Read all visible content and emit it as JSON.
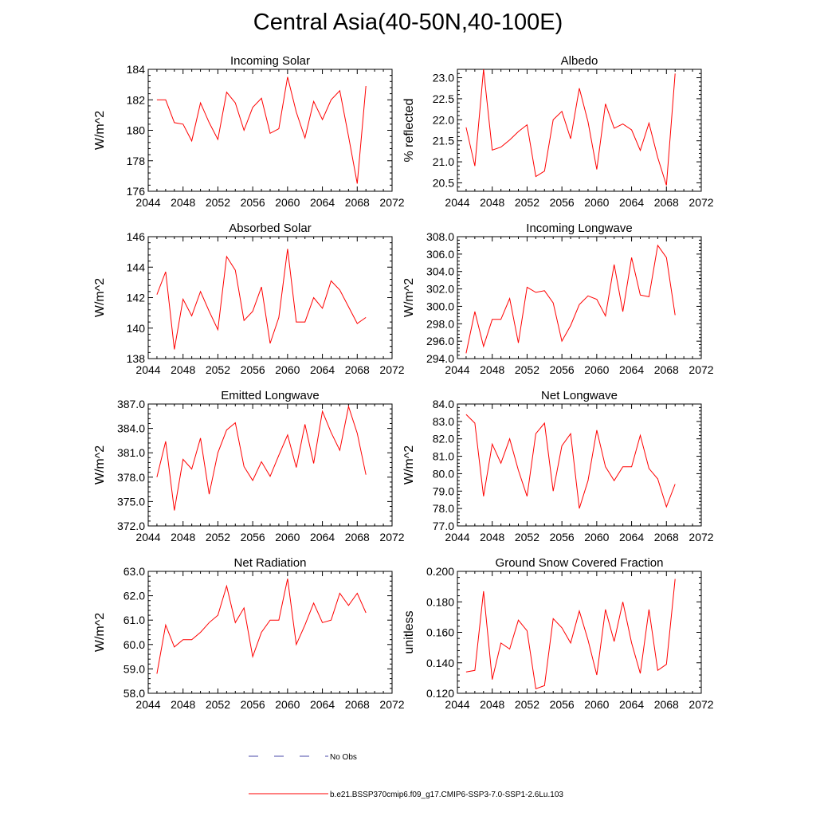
{
  "title": "Central Asia(40-50N,40-100E)",
  "legend": {
    "obs_label": "No Obs",
    "obs_color": "#4a4aa8",
    "model_label": "b.e21.BSSP370cmip6.f09_g17.CMIP6-SSP3-7.0-SSP1-2.6Lu.103",
    "model_color": "#ff0000"
  },
  "chart_data": [
    {
      "type": "line",
      "title": "Incoming Solar",
      "ylabel": "W/m^2",
      "xlim": [
        2044,
        2072
      ],
      "xticks": [
        "2044",
        "2048",
        "2052",
        "2056",
        "2060",
        "2064",
        "2068",
        "2072"
      ],
      "ylim": [
        176,
        184
      ],
      "yticks": [
        "176",
        "178",
        "180",
        "182",
        "184"
      ],
      "series": [
        {
          "name": "b.e21.BSSP370cmip6.f09_g17.CMIP6-SSP3-7.0-SSP1-2.6Lu.103",
          "x": [
            2045,
            2046,
            2047,
            2048,
            2049,
            2050,
            2051,
            2052,
            2053,
            2054,
            2055,
            2056,
            2057,
            2058,
            2059,
            2060,
            2061,
            2062,
            2063,
            2064,
            2065,
            2066,
            2067,
            2068,
            2069
          ],
          "values": [
            182.0,
            182.0,
            180.5,
            180.4,
            179.3,
            181.8,
            180.5,
            179.4,
            182.5,
            181.8,
            180.0,
            181.5,
            182.1,
            179.8,
            180.1,
            183.5,
            181.2,
            179.5,
            181.9,
            180.7,
            182.0,
            182.6,
            179.6,
            176.5,
            182.9
          ]
        }
      ]
    },
    {
      "type": "line",
      "title": "Albedo",
      "ylabel": "% reflected",
      "xlim": [
        2044,
        2072
      ],
      "xticks": [
        "2044",
        "2048",
        "2052",
        "2056",
        "2060",
        "2064",
        "2068",
        "2072"
      ],
      "ylim": [
        20.3,
        23.2
      ],
      "yticks": [
        "20.5",
        "21.0",
        "21.5",
        "22.0",
        "22.5",
        "23.0"
      ],
      "series": [
        {
          "name": "b.e21.BSSP370cmip6.f09_g17.CMIP6-SSP3-7.0-SSP1-2.6Lu.103",
          "x": [
            2045,
            2046,
            2047,
            2048,
            2049,
            2050,
            2051,
            2052,
            2053,
            2054,
            2055,
            2056,
            2057,
            2058,
            2059,
            2060,
            2061,
            2062,
            2063,
            2064,
            2065,
            2066,
            2067,
            2068,
            2069
          ],
          "values": [
            21.82,
            20.9,
            23.2,
            21.28,
            21.35,
            21.52,
            21.72,
            21.88,
            20.65,
            20.78,
            22.0,
            22.2,
            21.55,
            22.75,
            21.95,
            20.82,
            22.38,
            21.8,
            21.9,
            21.76,
            21.27,
            21.92,
            21.1,
            20.44,
            23.1
          ]
        }
      ]
    },
    {
      "type": "line",
      "title": "Absorbed Solar",
      "ylabel": "W/m^2",
      "xlim": [
        2044,
        2072
      ],
      "xticks": [
        "2044",
        "2048",
        "2052",
        "2056",
        "2060",
        "2064",
        "2068",
        "2072"
      ],
      "ylim": [
        138,
        146
      ],
      "yticks": [
        "138",
        "140",
        "142",
        "144",
        "146"
      ],
      "series": [
        {
          "name": "b.e21.BSSP370cmip6.f09_g17.CMIP6-SSP3-7.0-SSP1-2.6Lu.103",
          "x": [
            2045,
            2046,
            2047,
            2048,
            2049,
            2050,
            2051,
            2052,
            2053,
            2054,
            2055,
            2056,
            2057,
            2058,
            2059,
            2060,
            2061,
            2062,
            2063,
            2064,
            2065,
            2066,
            2067,
            2068,
            2069
          ],
          "values": [
            142.2,
            143.7,
            138.6,
            141.9,
            140.8,
            142.4,
            141.1,
            139.9,
            144.7,
            143.8,
            140.5,
            141.1,
            142.7,
            139.0,
            140.7,
            145.2,
            140.4,
            140.4,
            142.0,
            141.3,
            143.1,
            142.5,
            141.4,
            140.3,
            140.7
          ]
        }
      ]
    },
    {
      "type": "line",
      "title": "Incoming Longwave",
      "ylabel": "W/m^2",
      "xlim": [
        2044,
        2072
      ],
      "xticks": [
        "2044",
        "2048",
        "2052",
        "2056",
        "2060",
        "2064",
        "2068",
        "2072"
      ],
      "ylim": [
        294.0,
        308.0
      ],
      "yticks": [
        "294.0",
        "296.0",
        "298.0",
        "300.0",
        "302.0",
        "304.0",
        "306.0",
        "308.0"
      ],
      "series": [
        {
          "name": "b.e21.BSSP370cmip6.f09_g17.CMIP6-SSP3-7.0-SSP1-2.6Lu.103",
          "x": [
            2045,
            2046,
            2047,
            2048,
            2049,
            2050,
            2051,
            2052,
            2053,
            2054,
            2055,
            2056,
            2057,
            2058,
            2059,
            2060,
            2061,
            2062,
            2063,
            2064,
            2065,
            2066,
            2067,
            2068,
            2069
          ],
          "values": [
            294.6,
            299.4,
            295.4,
            298.5,
            298.5,
            300.9,
            295.8,
            302.2,
            301.6,
            301.8,
            300.4,
            296.0,
            297.8,
            300.2,
            301.2,
            300.8,
            298.9,
            304.8,
            299.4,
            305.6,
            301.3,
            301.1,
            307.0,
            305.6,
            299.0
          ]
        }
      ]
    },
    {
      "type": "line",
      "title": "Emitted Longwave",
      "ylabel": "W/m^2",
      "xlim": [
        2044,
        2072
      ],
      "xticks": [
        "2044",
        "2048",
        "2052",
        "2056",
        "2060",
        "2064",
        "2068",
        "2072"
      ],
      "ylim": [
        372.0,
        387.0
      ],
      "yticks": [
        "372.0",
        "375.0",
        "378.0",
        "381.0",
        "384.0",
        "387.0"
      ],
      "series": [
        {
          "name": "b.e21.BSSP370cmip6.f09_g17.CMIP6-SSP3-7.0-SSP1-2.6Lu.103",
          "x": [
            2045,
            2046,
            2047,
            2048,
            2049,
            2050,
            2051,
            2052,
            2053,
            2054,
            2055,
            2056,
            2057,
            2058,
            2059,
            2060,
            2061,
            2062,
            2063,
            2064,
            2065,
            2066,
            2067,
            2068,
            2069
          ],
          "values": [
            378.0,
            382.4,
            373.9,
            380.2,
            379.0,
            382.8,
            375.9,
            381.0,
            383.8,
            384.7,
            379.3,
            377.6,
            379.9,
            378.1,
            380.7,
            383.2,
            379.2,
            384.5,
            379.7,
            386.1,
            383.5,
            381.3,
            386.7,
            383.4,
            378.3
          ]
        }
      ]
    },
    {
      "type": "line",
      "title": "Net Longwave",
      "ylabel": "W/m^2",
      "xlim": [
        2044,
        2072
      ],
      "xticks": [
        "2044",
        "2048",
        "2052",
        "2056",
        "2060",
        "2064",
        "2068",
        "2072"
      ],
      "ylim": [
        77.0,
        84.0
      ],
      "yticks": [
        "77.0",
        "78.0",
        "79.0",
        "80.0",
        "81.0",
        "82.0",
        "83.0",
        "84.0"
      ],
      "series": [
        {
          "name": "b.e21.BSSP370cmip6.f09_g17.CMIP6-SSP3-7.0-SSP1-2.6Lu.103",
          "x": [
            2045,
            2046,
            2047,
            2048,
            2049,
            2050,
            2051,
            2052,
            2053,
            2054,
            2055,
            2056,
            2057,
            2058,
            2059,
            2060,
            2061,
            2062,
            2063,
            2064,
            2065,
            2066,
            2067,
            2068,
            2069
          ],
          "values": [
            83.4,
            82.9,
            78.7,
            81.7,
            80.6,
            82.0,
            80.2,
            78.7,
            82.3,
            82.9,
            79.0,
            81.6,
            82.3,
            78.0,
            79.6,
            82.5,
            80.4,
            79.6,
            80.4,
            80.4,
            82.2,
            80.3,
            79.7,
            78.1,
            79.4
          ]
        }
      ]
    },
    {
      "type": "line",
      "title": "Net Radiation",
      "ylabel": "W/m^2",
      "xlim": [
        2044,
        2072
      ],
      "xticks": [
        "2044",
        "2048",
        "2052",
        "2056",
        "2060",
        "2064",
        "2068",
        "2072"
      ],
      "ylim": [
        58.0,
        63.0
      ],
      "yticks": [
        "58.0",
        "59.0",
        "60.0",
        "61.0",
        "62.0",
        "63.0"
      ],
      "series": [
        {
          "name": "b.e21.BSSP370cmip6.f09_g17.CMIP6-SSP3-7.0-SSP1-2.6Lu.103",
          "x": [
            2045,
            2046,
            2047,
            2048,
            2049,
            2050,
            2051,
            2052,
            2053,
            2054,
            2055,
            2056,
            2057,
            2058,
            2059,
            2060,
            2061,
            2062,
            2063,
            2064,
            2065,
            2066,
            2067,
            2068,
            2069
          ],
          "values": [
            58.8,
            60.8,
            59.9,
            60.2,
            60.2,
            60.5,
            60.9,
            61.2,
            62.4,
            60.9,
            61.5,
            59.5,
            60.5,
            61.0,
            61.0,
            62.7,
            60.0,
            60.8,
            61.7,
            60.9,
            61.0,
            62.1,
            61.6,
            62.1,
            61.3
          ]
        }
      ]
    },
    {
      "type": "line",
      "title": "Ground Snow Covered Fraction",
      "ylabel": "unitless",
      "xlim": [
        2044,
        2072
      ],
      "xticks": [
        "2044",
        "2048",
        "2052",
        "2056",
        "2060",
        "2064",
        "2068",
        "2072"
      ],
      "ylim": [
        0.12,
        0.2
      ],
      "yticks": [
        "0.120",
        "0.140",
        "0.160",
        "0.180",
        "0.200"
      ],
      "series": [
        {
          "name": "b.e21.BSSP370cmip6.f09_g17.CMIP6-SSP3-7.0-SSP1-2.6Lu.103",
          "x": [
            2045,
            2046,
            2047,
            2048,
            2049,
            2050,
            2051,
            2052,
            2053,
            2054,
            2055,
            2056,
            2057,
            2058,
            2059,
            2060,
            2061,
            2062,
            2063,
            2064,
            2065,
            2066,
            2067,
            2068,
            2069
          ],
          "values": [
            0.134,
            0.135,
            0.187,
            0.129,
            0.153,
            0.149,
            0.168,
            0.161,
            0.123,
            0.125,
            0.169,
            0.163,
            0.153,
            0.174,
            0.155,
            0.132,
            0.175,
            0.154,
            0.18,
            0.153,
            0.133,
            0.175,
            0.135,
            0.139,
            0.195
          ]
        }
      ]
    }
  ]
}
